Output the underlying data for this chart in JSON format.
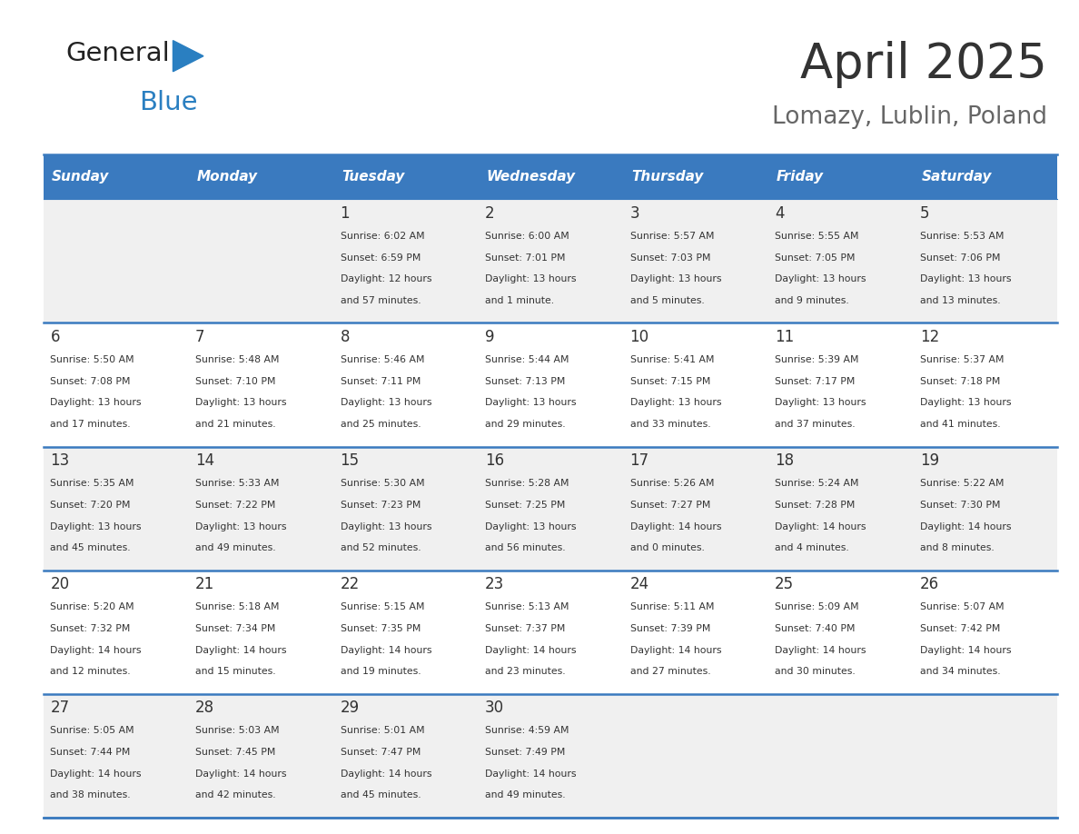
{
  "title": "April 2025",
  "subtitle": "Lomazy, Lublin, Poland",
  "days_of_week": [
    "Sunday",
    "Monday",
    "Tuesday",
    "Wednesday",
    "Thursday",
    "Friday",
    "Saturday"
  ],
  "header_bg": "#3a7abf",
  "header_text_color": "#ffffff",
  "cell_bg_light": "#f0f0f0",
  "cell_bg_white": "#ffffff",
  "border_color": "#3a7abf",
  "text_color": "#333333",
  "title_color": "#333333",
  "subtitle_color": "#666666",
  "calendar_data": [
    [
      {
        "day": null,
        "info": null
      },
      {
        "day": null,
        "info": null
      },
      {
        "day": 1,
        "info": "Sunrise: 6:02 AM\nSunset: 6:59 PM\nDaylight: 12 hours\nand 57 minutes."
      },
      {
        "day": 2,
        "info": "Sunrise: 6:00 AM\nSunset: 7:01 PM\nDaylight: 13 hours\nand 1 minute."
      },
      {
        "day": 3,
        "info": "Sunrise: 5:57 AM\nSunset: 7:03 PM\nDaylight: 13 hours\nand 5 minutes."
      },
      {
        "day": 4,
        "info": "Sunrise: 5:55 AM\nSunset: 7:05 PM\nDaylight: 13 hours\nand 9 minutes."
      },
      {
        "day": 5,
        "info": "Sunrise: 5:53 AM\nSunset: 7:06 PM\nDaylight: 13 hours\nand 13 minutes."
      }
    ],
    [
      {
        "day": 6,
        "info": "Sunrise: 5:50 AM\nSunset: 7:08 PM\nDaylight: 13 hours\nand 17 minutes."
      },
      {
        "day": 7,
        "info": "Sunrise: 5:48 AM\nSunset: 7:10 PM\nDaylight: 13 hours\nand 21 minutes."
      },
      {
        "day": 8,
        "info": "Sunrise: 5:46 AM\nSunset: 7:11 PM\nDaylight: 13 hours\nand 25 minutes."
      },
      {
        "day": 9,
        "info": "Sunrise: 5:44 AM\nSunset: 7:13 PM\nDaylight: 13 hours\nand 29 minutes."
      },
      {
        "day": 10,
        "info": "Sunrise: 5:41 AM\nSunset: 7:15 PM\nDaylight: 13 hours\nand 33 minutes."
      },
      {
        "day": 11,
        "info": "Sunrise: 5:39 AM\nSunset: 7:17 PM\nDaylight: 13 hours\nand 37 minutes."
      },
      {
        "day": 12,
        "info": "Sunrise: 5:37 AM\nSunset: 7:18 PM\nDaylight: 13 hours\nand 41 minutes."
      }
    ],
    [
      {
        "day": 13,
        "info": "Sunrise: 5:35 AM\nSunset: 7:20 PM\nDaylight: 13 hours\nand 45 minutes."
      },
      {
        "day": 14,
        "info": "Sunrise: 5:33 AM\nSunset: 7:22 PM\nDaylight: 13 hours\nand 49 minutes."
      },
      {
        "day": 15,
        "info": "Sunrise: 5:30 AM\nSunset: 7:23 PM\nDaylight: 13 hours\nand 52 minutes."
      },
      {
        "day": 16,
        "info": "Sunrise: 5:28 AM\nSunset: 7:25 PM\nDaylight: 13 hours\nand 56 minutes."
      },
      {
        "day": 17,
        "info": "Sunrise: 5:26 AM\nSunset: 7:27 PM\nDaylight: 14 hours\nand 0 minutes."
      },
      {
        "day": 18,
        "info": "Sunrise: 5:24 AM\nSunset: 7:28 PM\nDaylight: 14 hours\nand 4 minutes."
      },
      {
        "day": 19,
        "info": "Sunrise: 5:22 AM\nSunset: 7:30 PM\nDaylight: 14 hours\nand 8 minutes."
      }
    ],
    [
      {
        "day": 20,
        "info": "Sunrise: 5:20 AM\nSunset: 7:32 PM\nDaylight: 14 hours\nand 12 minutes."
      },
      {
        "day": 21,
        "info": "Sunrise: 5:18 AM\nSunset: 7:34 PM\nDaylight: 14 hours\nand 15 minutes."
      },
      {
        "day": 22,
        "info": "Sunrise: 5:15 AM\nSunset: 7:35 PM\nDaylight: 14 hours\nand 19 minutes."
      },
      {
        "day": 23,
        "info": "Sunrise: 5:13 AM\nSunset: 7:37 PM\nDaylight: 14 hours\nand 23 minutes."
      },
      {
        "day": 24,
        "info": "Sunrise: 5:11 AM\nSunset: 7:39 PM\nDaylight: 14 hours\nand 27 minutes."
      },
      {
        "day": 25,
        "info": "Sunrise: 5:09 AM\nSunset: 7:40 PM\nDaylight: 14 hours\nand 30 minutes."
      },
      {
        "day": 26,
        "info": "Sunrise: 5:07 AM\nSunset: 7:42 PM\nDaylight: 14 hours\nand 34 minutes."
      }
    ],
    [
      {
        "day": 27,
        "info": "Sunrise: 5:05 AM\nSunset: 7:44 PM\nDaylight: 14 hours\nand 38 minutes."
      },
      {
        "day": 28,
        "info": "Sunrise: 5:03 AM\nSunset: 7:45 PM\nDaylight: 14 hours\nand 42 minutes."
      },
      {
        "day": 29,
        "info": "Sunrise: 5:01 AM\nSunset: 7:47 PM\nDaylight: 14 hours\nand 45 minutes."
      },
      {
        "day": 30,
        "info": "Sunrise: 4:59 AM\nSunset: 7:49 PM\nDaylight: 14 hours\nand 49 minutes."
      },
      {
        "day": null,
        "info": null
      },
      {
        "day": null,
        "info": null
      },
      {
        "day": null,
        "info": null
      }
    ]
  ],
  "logo_text_general": "General",
  "logo_text_blue": "Blue",
  "logo_color_general": "#222222",
  "logo_color_blue": "#2a7fc1"
}
